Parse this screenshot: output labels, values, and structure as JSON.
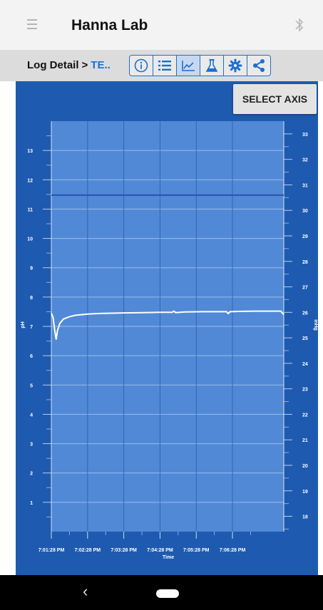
{
  "header": {
    "title": "Hanna Lab",
    "menu_icon": "hamburger-icon",
    "right_icon": "bluetooth-icon"
  },
  "toolbar": {
    "breadcrumb_root": "Log Detail",
    "breadcrumb_sep": ">",
    "breadcrumb_current": "TE..",
    "buttons": [
      "info-icon",
      "list-icon",
      "graph-icon",
      "flask-icon",
      "gear-icon",
      "share-icon"
    ],
    "active_button": "graph-icon"
  },
  "select_axis": {
    "label": "SELECT AXIS"
  },
  "colors": {
    "panel": "#1e5ab0",
    "plot": "#5189d6",
    "series_ph": "#ffffff",
    "series_inhg": "#2f51b8",
    "accent": "#1b6fd1"
  },
  "chart_data": {
    "type": "line",
    "xlabel": "Time",
    "ylabel_left": "pH",
    "ylabel_right": "inHg",
    "x_ticks": [
      "7:01:28 PM",
      "7:02:28 PM",
      "7:03:28 PM",
      "7:04:28 PM",
      "7:05:28 PM",
      "7:06:28 PM"
    ],
    "xlim_seconds": [
      0,
      385
    ],
    "ylim_left": [
      0,
      14
    ],
    "ylim_right": [
      17.4,
      33.5
    ],
    "y_ticks_left": [
      1,
      2,
      3,
      4,
      5,
      6,
      7,
      8,
      9,
      10,
      11,
      12,
      13
    ],
    "y_ticks_right": [
      18,
      19,
      20,
      21,
      22,
      23,
      24,
      25,
      26,
      27,
      28,
      29,
      30,
      31,
      32,
      33
    ],
    "grid": true,
    "series": [
      {
        "axis": "left",
        "x": [
          0,
          3,
          6,
          8,
          10,
          14,
          20,
          30,
          40,
          60,
          80,
          100,
          120,
          150,
          180,
          200,
          203,
          206,
          220,
          250,
          280,
          290,
          293,
          296,
          310,
          340,
          370,
          380,
          385
        ],
        "values": [
          7.45,
          7.3,
          6.8,
          6.55,
          6.85,
          7.1,
          7.25,
          7.33,
          7.38,
          7.42,
          7.44,
          7.45,
          7.46,
          7.47,
          7.48,
          7.48,
          7.52,
          7.47,
          7.49,
          7.5,
          7.5,
          7.5,
          7.44,
          7.5,
          7.51,
          7.52,
          7.52,
          7.52,
          7.4
        ]
      },
      {
        "axis": "right",
        "x": [
          0,
          100,
          200,
          300,
          385
        ],
        "values": [
          30.6,
          30.6,
          30.6,
          30.6,
          30.6
        ]
      }
    ]
  },
  "nav": {
    "back_label": "‹"
  }
}
